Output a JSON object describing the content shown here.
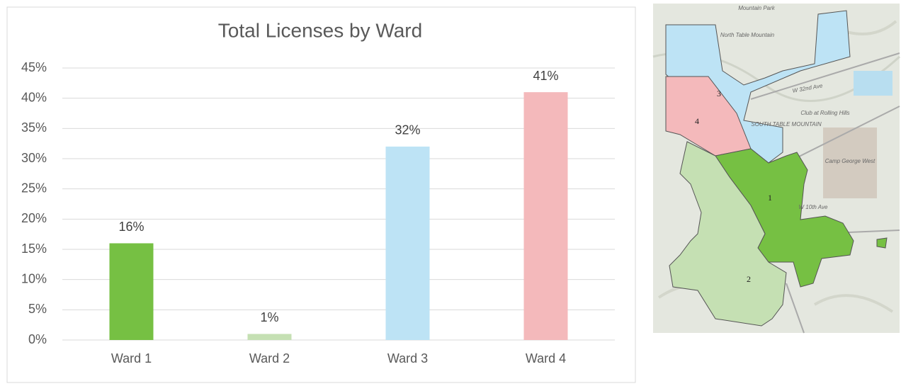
{
  "chart_data": {
    "type": "bar",
    "title": "Total Licenses by Ward",
    "categories": [
      "Ward 1",
      "Ward 2",
      "Ward 3",
      "Ward 4"
    ],
    "values": [
      16,
      1,
      32,
      41
    ],
    "value_labels": [
      "16%",
      "1%",
      "32%",
      "41%"
    ],
    "colors": [
      "#76c043",
      "#c5e0b3",
      "#bde3f5",
      "#f4b9bb"
    ],
    "ylim": [
      0,
      45
    ],
    "yticks": [
      {
        "value": 0,
        "label": "0%"
      },
      {
        "value": 5,
        "label": "5%"
      },
      {
        "value": 10,
        "label": "10%"
      },
      {
        "value": 15,
        "label": "15%"
      },
      {
        "value": 20,
        "label": "20%"
      },
      {
        "value": 25,
        "label": "25%"
      },
      {
        "value": 30,
        "label": "30%"
      },
      {
        "value": 35,
        "label": "35%"
      },
      {
        "value": 40,
        "label": "40%"
      },
      {
        "value": 45,
        "label": "45%"
      }
    ],
    "grid": true
  },
  "map": {
    "wards": [
      {
        "label": "1"
      },
      {
        "label": "2"
      },
      {
        "label": "3"
      },
      {
        "label": "4"
      }
    ],
    "places": [
      "Mountain Park",
      "North Table Mountain",
      "SOUTH TABLE MOUNTAIN",
      "Camp George West",
      "W 10th Ave",
      "W 32nd Ave",
      "Club at Rolling Hills"
    ]
  }
}
